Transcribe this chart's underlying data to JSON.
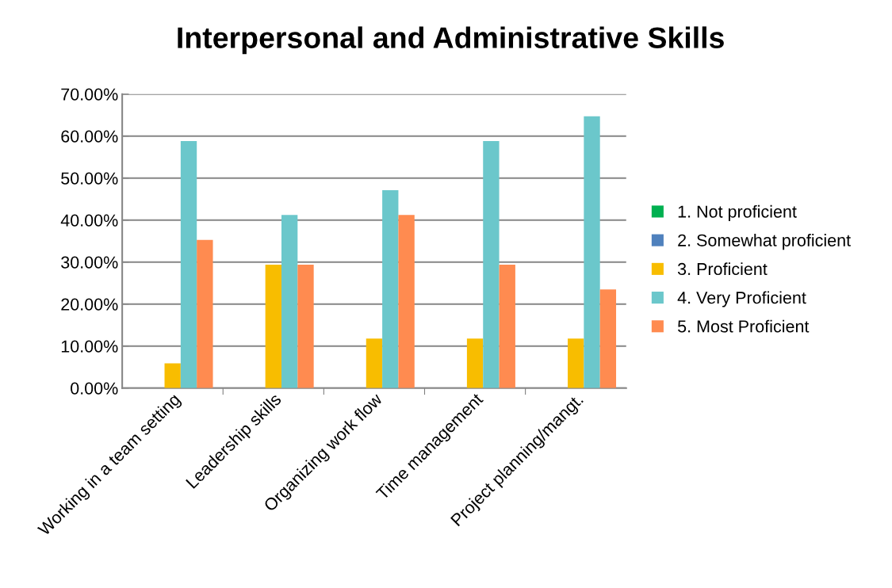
{
  "chart_data": {
    "type": "bar",
    "title": "Interpersonal and Administrative Skills",
    "categories": [
      "Working in a team setting",
      "Leadership skills",
      "Organizing work flow",
      "Time management",
      "Project planning/mangt."
    ],
    "series": [
      {
        "name": "1. Not proficient",
        "color": "#00b050",
        "values": [
          0,
          0,
          0,
          0,
          0
        ]
      },
      {
        "name": "2. Somewhat proficient",
        "color": "#4f81bd",
        "values": [
          0,
          0,
          0,
          0,
          0
        ]
      },
      {
        "name": "3. Proficient",
        "color": "#f8bd00",
        "values": [
          5.9,
          29.4,
          11.8,
          11.8,
          11.8
        ]
      },
      {
        "name": "4. Very Proficient",
        "color": "#6bc7cb",
        "values": [
          58.8,
          41.2,
          47.1,
          58.8,
          64.7
        ]
      },
      {
        "name": "5. Most Proficient",
        "color": "#ff8b50",
        "values": [
          35.3,
          29.4,
          41.2,
          29.4,
          23.5
        ]
      }
    ],
    "ylim": [
      0,
      70
    ],
    "yticks": [
      {
        "value": 0,
        "label": "0.00%"
      },
      {
        "value": 10,
        "label": "10.00%"
      },
      {
        "value": 20,
        "label": "20.00%"
      },
      {
        "value": 30,
        "label": "30.00%"
      },
      {
        "value": 40,
        "label": "40.00%"
      },
      {
        "value": 50,
        "label": "50.00%"
      },
      {
        "value": 60,
        "label": "60.00%"
      },
      {
        "value": 70,
        "label": "70.00%"
      }
    ],
    "grid": "y",
    "legend": "right"
  }
}
